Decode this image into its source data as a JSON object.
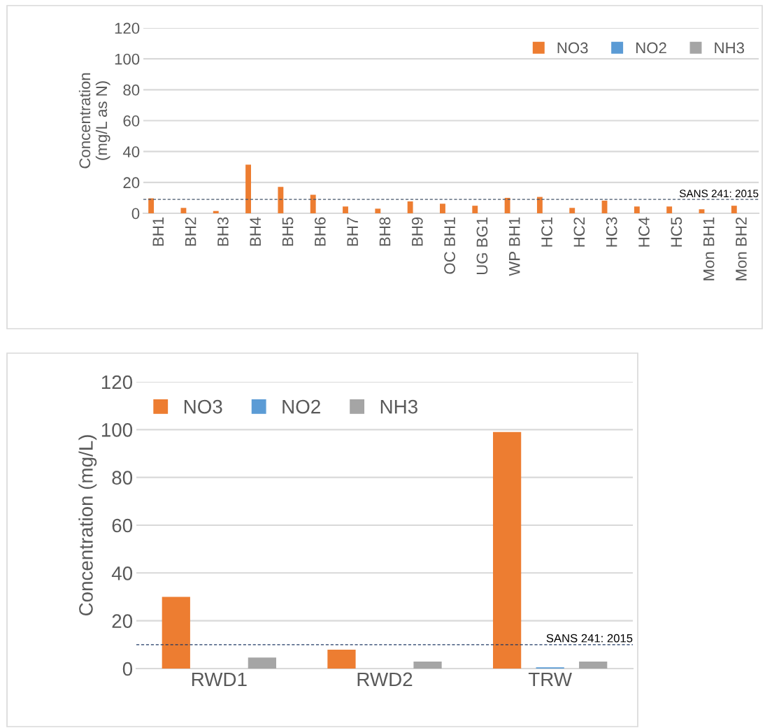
{
  "chart_data": [
    {
      "type": "bar",
      "ylabel": "Concentration\n(mg/L as N)",
      "categories": [
        "BH1",
        "BH2",
        "BH3",
        "BH4",
        "BH5",
        "BH6",
        "BH7",
        "BH8",
        "BH9",
        "OC BH1",
        "UG BG1",
        "WP BH1",
        "HC1",
        "HC2",
        "HC3",
        "HC4",
        "HC5",
        "Mon BH1",
        "Mon BH2"
      ],
      "series": [
        {
          "name": "NO3",
          "color": "#ed7d31",
          "values": [
            9.7,
            3.5,
            1.5,
            31.5,
            17.1,
            12.0,
            4.4,
            3.0,
            7.7,
            6.2,
            4.9,
            10.0,
            10.6,
            3.5,
            8.2,
            4.4,
            4.4,
            2.6,
            4.9
          ]
        },
        {
          "name": "NO2",
          "color": "#5b9bd5",
          "values": [
            0,
            0,
            0,
            0,
            0,
            0,
            0,
            0,
            0,
            0,
            0,
            0,
            0,
            0,
            0,
            0,
            0,
            0,
            0
          ]
        },
        {
          "name": "NH3",
          "color": "#a5a5a5",
          "values": [
            0,
            0,
            0,
            0,
            0,
            0,
            0,
            0,
            0,
            0,
            0,
            0,
            0,
            0,
            0,
            0,
            0,
            0,
            0
          ]
        }
      ],
      "ylim": [
        0,
        120
      ],
      "yticks": [
        0,
        20,
        40,
        60,
        80,
        100,
        120
      ],
      "grid": "y",
      "legend": "top right",
      "ref_lines": [
        {
          "axis": "y",
          "value": 9,
          "color": "#44546a",
          "line_style": "dashed"
        }
      ],
      "annotations": [
        {
          "text": "SANS 241: 2015",
          "y": 9
        }
      ]
    },
    {
      "type": "bar",
      "ylabel": "Concentration (mg/L)",
      "categories": [
        "RWD1",
        "RWD2",
        "TRW"
      ],
      "series": [
        {
          "name": "NO3",
          "color": "#ed7d31",
          "values": [
            30,
            7.9,
            99
          ]
        },
        {
          "name": "NO2",
          "color": "#5b9bd5",
          "values": [
            0,
            0,
            0.5
          ]
        },
        {
          "name": "NH3",
          "color": "#a5a5a5",
          "values": [
            4.6,
            2.9,
            2.9
          ]
        }
      ],
      "ylim": [
        0,
        120
      ],
      "yticks": [
        0,
        20,
        40,
        60,
        80,
        100,
        120
      ],
      "grid": "y",
      "legend": "top left",
      "ref_lines": [
        {
          "axis": "y",
          "value": 10,
          "color": "#1f3864",
          "line_style": "dashed"
        }
      ],
      "annotations": [
        {
          "text": "SANS 241: 2015",
          "y": 10
        }
      ]
    }
  ]
}
